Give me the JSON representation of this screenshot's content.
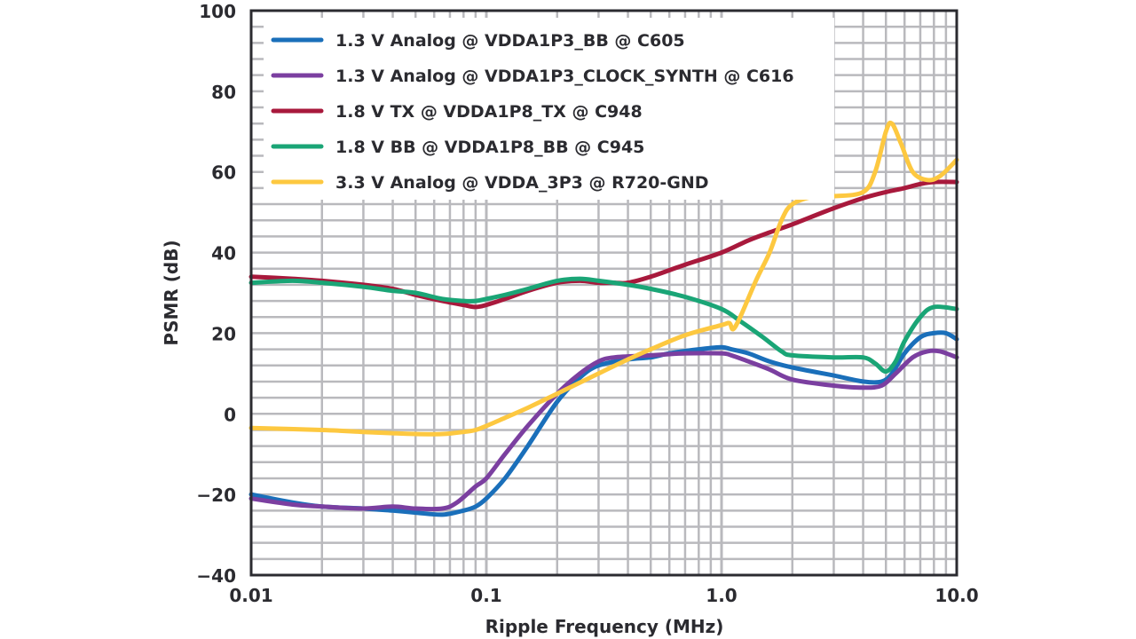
{
  "chart_data": {
    "type": "line",
    "title": "",
    "xlabel": "Ripple Frequency (MHz)",
    "ylabel": "PSMR (dB)",
    "xscale": "log",
    "xlim": [
      0.01,
      10.0
    ],
    "ylim": [
      -40,
      100
    ],
    "x_ticks": [
      0.01,
      0.1,
      1.0,
      10.0
    ],
    "x_tick_labels": [
      "0.01",
      "0.1",
      "1.0",
      "10.0"
    ],
    "y_ticks": [
      -40,
      -20,
      0,
      20,
      40,
      60,
      80,
      100
    ],
    "y_tick_labels": [
      "−40",
      "−20",
      "0",
      "20",
      "40",
      "60",
      "80",
      "100"
    ],
    "y_minor_step": 4,
    "grid": true,
    "legend_position": "top-left",
    "series": [
      {
        "name": "1.3 V Analog @ VDDA1P3_BB @ C605",
        "color": "#1a6fba",
        "points": [
          [
            0.01,
            -20
          ],
          [
            0.015,
            -22
          ],
          [
            0.02,
            -23
          ],
          [
            0.03,
            -23.5
          ],
          [
            0.04,
            -24
          ],
          [
            0.05,
            -24.5
          ],
          [
            0.065,
            -25
          ],
          [
            0.08,
            -24
          ],
          [
            0.09,
            -23
          ],
          [
            0.1,
            -21
          ],
          [
            0.12,
            -16
          ],
          [
            0.15,
            -8
          ],
          [
            0.2,
            3
          ],
          [
            0.25,
            9
          ],
          [
            0.3,
            12
          ],
          [
            0.4,
            13.5
          ],
          [
            0.5,
            14
          ],
          [
            0.6,
            15
          ],
          [
            0.8,
            16
          ],
          [
            1.0,
            16.5
          ],
          [
            1.1,
            16
          ],
          [
            1.3,
            15
          ],
          [
            1.6,
            13
          ],
          [
            2.0,
            11.5
          ],
          [
            3.0,
            9.5
          ],
          [
            4.0,
            8
          ],
          [
            4.8,
            8
          ],
          [
            5.3,
            10
          ],
          [
            6.0,
            15
          ],
          [
            7.0,
            19
          ],
          [
            8.0,
            20
          ],
          [
            9.0,
            20
          ],
          [
            10.0,
            18.5
          ]
        ]
      },
      {
        "name": "1.3 V Analog @ VDDA1P3_CLOCK_SYNTH @ C616",
        "color": "#7b3fa0",
        "points": [
          [
            0.01,
            -21
          ],
          [
            0.015,
            -22.5
          ],
          [
            0.02,
            -23
          ],
          [
            0.03,
            -23.5
          ],
          [
            0.04,
            -23
          ],
          [
            0.05,
            -23.5
          ],
          [
            0.065,
            -23.5
          ],
          [
            0.075,
            -22
          ],
          [
            0.09,
            -18
          ],
          [
            0.1,
            -16
          ],
          [
            0.12,
            -10
          ],
          [
            0.15,
            -3
          ],
          [
            0.2,
            5
          ],
          [
            0.25,
            10
          ],
          [
            0.3,
            13
          ],
          [
            0.35,
            14
          ],
          [
            0.5,
            14.5
          ],
          [
            0.7,
            15
          ],
          [
            1.0,
            15
          ],
          [
            1.1,
            14.5
          ],
          [
            1.3,
            13
          ],
          [
            1.6,
            11
          ],
          [
            2.0,
            8.5
          ],
          [
            3.0,
            7
          ],
          [
            4.0,
            6.5
          ],
          [
            4.8,
            7
          ],
          [
            5.5,
            10
          ],
          [
            6.5,
            14
          ],
          [
            7.5,
            15.5
          ],
          [
            8.5,
            15.5
          ],
          [
            10.0,
            14
          ]
        ]
      },
      {
        "name": "1.8 V TX @ VDDA1P8_TX @ C948",
        "color": "#a8193c",
        "points": [
          [
            0.01,
            34
          ],
          [
            0.015,
            33.5
          ],
          [
            0.02,
            33
          ],
          [
            0.03,
            32
          ],
          [
            0.04,
            31
          ],
          [
            0.05,
            29.5
          ],
          [
            0.065,
            28
          ],
          [
            0.08,
            27
          ],
          [
            0.09,
            26.5
          ],
          [
            0.1,
            27
          ],
          [
            0.12,
            28.5
          ],
          [
            0.15,
            30.5
          ],
          [
            0.2,
            32.5
          ],
          [
            0.25,
            33
          ],
          [
            0.3,
            32.5
          ],
          [
            0.35,
            32.5
          ],
          [
            0.4,
            32.5
          ],
          [
            0.5,
            34
          ],
          [
            0.7,
            37
          ],
          [
            1.0,
            40
          ],
          [
            1.3,
            43
          ],
          [
            1.6,
            45
          ],
          [
            2.0,
            47
          ],
          [
            3.0,
            51
          ],
          [
            4.0,
            53.5
          ],
          [
            5.0,
            55
          ],
          [
            6.0,
            56
          ],
          [
            7.0,
            57
          ],
          [
            8.0,
            57.5
          ],
          [
            10.0,
            57.5
          ]
        ]
      },
      {
        "name": "1.8 V BB @ VDDA1P8_BB @ C945",
        "color": "#1aa576",
        "points": [
          [
            0.01,
            32.5
          ],
          [
            0.015,
            33
          ],
          [
            0.02,
            32.5
          ],
          [
            0.03,
            31.5
          ],
          [
            0.04,
            30.5
          ],
          [
            0.05,
            30
          ],
          [
            0.065,
            28.5
          ],
          [
            0.08,
            28
          ],
          [
            0.09,
            28
          ],
          [
            0.1,
            28.5
          ],
          [
            0.12,
            29.5
          ],
          [
            0.15,
            31
          ],
          [
            0.2,
            33
          ],
          [
            0.25,
            33.5
          ],
          [
            0.3,
            33
          ],
          [
            0.4,
            32
          ],
          [
            0.5,
            31
          ],
          [
            0.7,
            29
          ],
          [
            1.0,
            26
          ],
          [
            1.2,
            23
          ],
          [
            1.5,
            19
          ],
          [
            1.8,
            15.5
          ],
          [
            2.0,
            14.5
          ],
          [
            3.0,
            14
          ],
          [
            4.0,
            14
          ],
          [
            4.5,
            12.5
          ],
          [
            5.0,
            10.5
          ],
          [
            5.5,
            13
          ],
          [
            6.0,
            18
          ],
          [
            7.0,
            24
          ],
          [
            8.0,
            26.5
          ],
          [
            10.0,
            26
          ]
        ]
      },
      {
        "name": "3.3 V Analog @ VDDA_3P3 @ R720-GND",
        "color": "#fdc840",
        "points": [
          [
            0.01,
            -3.5
          ],
          [
            0.02,
            -4
          ],
          [
            0.03,
            -4.5
          ],
          [
            0.04,
            -4.8
          ],
          [
            0.05,
            -5
          ],
          [
            0.065,
            -5
          ],
          [
            0.08,
            -4.5
          ],
          [
            0.09,
            -4
          ],
          [
            0.1,
            -3
          ],
          [
            0.12,
            -1
          ],
          [
            0.15,
            1.5
          ],
          [
            0.2,
            5
          ],
          [
            0.3,
            10
          ],
          [
            0.4,
            13.5
          ],
          [
            0.5,
            16
          ],
          [
            0.7,
            19.5
          ],
          [
            1.0,
            22
          ],
          [
            1.08,
            22.5
          ],
          [
            1.12,
            21
          ],
          [
            1.2,
            24
          ],
          [
            1.4,
            33
          ],
          [
            1.6,
            40
          ],
          [
            1.8,
            48
          ],
          [
            2.0,
            52
          ],
          [
            2.5,
            54
          ],
          [
            3.0,
            54
          ],
          [
            4.0,
            55
          ],
          [
            4.5,
            60
          ],
          [
            5.0,
            70
          ],
          [
            5.3,
            72
          ],
          [
            5.8,
            67
          ],
          [
            6.5,
            60
          ],
          [
            7.5,
            58
          ],
          [
            8.5,
            59
          ],
          [
            10.0,
            63
          ]
        ]
      }
    ]
  }
}
